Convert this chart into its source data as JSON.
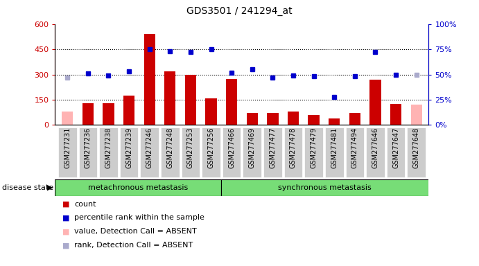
{
  "title": "GDS3501 / 241294_at",
  "samples": [
    "GSM277231",
    "GSM277236",
    "GSM277238",
    "GSM277239",
    "GSM277246",
    "GSM277248",
    "GSM277253",
    "GSM277256",
    "GSM277466",
    "GSM277469",
    "GSM277477",
    "GSM277478",
    "GSM277479",
    "GSM277481",
    "GSM277494",
    "GSM277646",
    "GSM277647",
    "GSM277648"
  ],
  "bar_values": [
    80,
    130,
    130,
    175,
    540,
    320,
    300,
    160,
    275,
    70,
    70,
    80,
    60,
    40,
    70,
    270,
    125,
    120
  ],
  "bar_absent": [
    true,
    false,
    false,
    false,
    false,
    false,
    false,
    false,
    false,
    false,
    false,
    false,
    false,
    false,
    false,
    false,
    false,
    true
  ],
  "percentile_values": [
    47,
    51,
    49,
    53,
    75,
    73,
    72,
    75,
    52,
    55,
    47,
    49,
    48,
    28,
    48,
    72,
    50,
    50
  ],
  "percentile_absent": [
    true,
    false,
    false,
    false,
    false,
    false,
    false,
    false,
    false,
    false,
    false,
    false,
    false,
    false,
    false,
    false,
    false,
    true
  ],
  "bar_color": "#cc0000",
  "bar_absent_color": "#ffb3b3",
  "dot_color": "#0000cc",
  "dot_absent_color": "#aaaacc",
  "group1_label": "metachronous metastasis",
  "group2_label": "synchronous metastasis",
  "group1_count": 8,
  "group2_count": 10,
  "group_color": "#77dd77",
  "ylim_left": [
    0,
    600
  ],
  "ylim_right": [
    0,
    100
  ],
  "yticks_left": [
    0,
    150,
    300,
    450,
    600
  ],
  "yticks_right": [
    0,
    25,
    50,
    75,
    100
  ],
  "ytick_labels_left": [
    "0",
    "150",
    "300",
    "450",
    "600"
  ],
  "ytick_labels_right": [
    "0%",
    "25%",
    "50%",
    "75%",
    "100%"
  ],
  "hlines": [
    150,
    300,
    450
  ],
  "left_axis_color": "#cc0000",
  "right_axis_color": "#0000cc",
  "disease_state_label": "disease state",
  "legend_items": [
    {
      "label": "count",
      "color": "#cc0000"
    },
    {
      "label": "percentile rank within the sample",
      "color": "#0000cc"
    },
    {
      "label": "value, Detection Call = ABSENT",
      "color": "#ffb3b3"
    },
    {
      "label": "rank, Detection Call = ABSENT",
      "color": "#aaaacc"
    }
  ],
  "bg_color": "#ffffff",
  "tick_area_color": "#cccccc"
}
